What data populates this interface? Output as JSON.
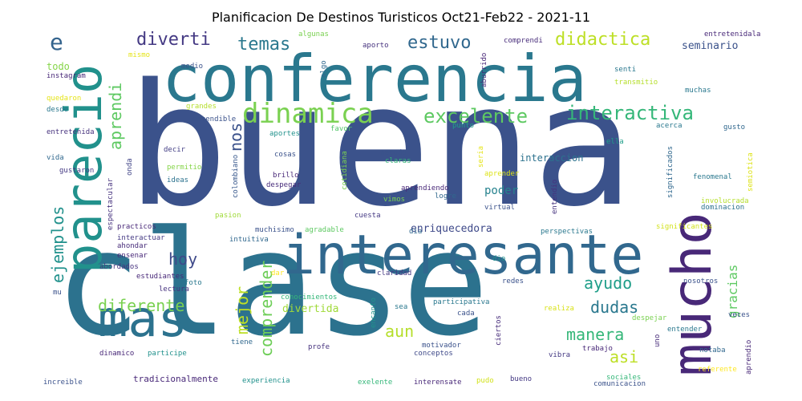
{
  "title": "Planificacion De Destinos Turisticos Oct21-Feb22 - 2021-11",
  "words": [
    {
      "text": "buena",
      "color": "#3b528b"
    },
    {
      "text": "clase",
      "color": "#2c728e"
    },
    {
      "text": "conferencia",
      "color": "#2a788e"
    },
    {
      "text": "interesante",
      "color": "#31688e"
    },
    {
      "text": "mucho",
      "color": "#482878"
    },
    {
      "text": "parecio",
      "color": "#21918c"
    },
    {
      "text": "mas",
      "color": "#2c728e"
    },
    {
      "text": "dinamica",
      "color": "#7ad151"
    },
    {
      "text": "excelente",
      "color": "#5ec962"
    },
    {
      "text": "interactiva",
      "color": "#35b779"
    },
    {
      "text": "e",
      "color": "#33638d"
    },
    {
      "text": "diverti",
      "color": "#443983"
    },
    {
      "text": "temas",
      "color": "#2a788e"
    },
    {
      "text": "estuvo",
      "color": "#31688e"
    },
    {
      "text": "didactica",
      "color": "#bddf26"
    },
    {
      "text": "seminario",
      "color": "#3b528b"
    },
    {
      "text": "aprendi",
      "color": "#5ec962"
    },
    {
      "text": "nos",
      "color": "#3b528b"
    },
    {
      "text": "hoy",
      "color": "#3e4989"
    },
    {
      "text": "ejemplos",
      "color": "#21918c"
    },
    {
      "text": "diferente",
      "color": "#7ad151"
    },
    {
      "text": "mejor",
      "color": "#bddf26"
    },
    {
      "text": "comprender",
      "color": "#6ece58"
    },
    {
      "text": "ayudo",
      "color": "#1f9e89"
    },
    {
      "text": "dudas",
      "color": "#2a788e"
    },
    {
      "text": "manera",
      "color": "#35b779"
    },
    {
      "text": "asi",
      "color": "#bddf26"
    },
    {
      "text": "aun",
      "color": "#b5de2b"
    },
    {
      "text": "gracias",
      "color": "#5ec962"
    },
    {
      "text": "enriquecedora",
      "color": "#3e4989"
    },
    {
      "text": "divertida",
      "color": "#a0da39"
    },
    {
      "text": "interaccion",
      "color": "#2c728e"
    },
    {
      "text": "poder",
      "color": "#26828e"
    },
    {
      "text": "todo",
      "color": "#86d549"
    },
    {
      "text": "instagram",
      "color": "#482878"
    },
    {
      "text": "quedaron",
      "color": "#e5e419"
    },
    {
      "text": "desde",
      "color": "#2a788e"
    },
    {
      "text": "entretenida",
      "color": "#46327e"
    },
    {
      "text": "vida",
      "color": "#31688e"
    },
    {
      "text": "gustaron",
      "color": "#443983"
    },
    {
      "text": "entretenidala",
      "color": "#482878"
    },
    {
      "text": "algunas",
      "color": "#7ad151"
    },
    {
      "text": "mismo",
      "color": "#e5e419"
    },
    {
      "text": "aporto",
      "color": "#46327e"
    },
    {
      "text": "comprendi",
      "color": "#472c7a"
    },
    {
      "text": "medio",
      "color": "#3b528b"
    },
    {
      "text": "algo",
      "color": "#31688e"
    },
    {
      "text": "aburrido",
      "color": "#482878"
    },
    {
      "text": "senti",
      "color": "#2a788e"
    },
    {
      "text": "muchas",
      "color": "#2a788e"
    },
    {
      "text": "transmitio",
      "color": "#b5de2b"
    },
    {
      "text": "grandes",
      "color": "#b5de2b"
    },
    {
      "text": "entendible",
      "color": "#3b528b"
    },
    {
      "text": "favor",
      "color": "#52c569"
    },
    {
      "text": "punto",
      "color": "#1f9e89"
    },
    {
      "text": "acerca",
      "color": "#2a788e"
    },
    {
      "text": "gusto",
      "color": "#31688e"
    },
    {
      "text": "aportes",
      "color": "#21918c"
    },
    {
      "text": "ella",
      "color": "#1f9e89"
    },
    {
      "text": "decir",
      "color": "#433e85"
    },
    {
      "text": "cosas",
      "color": "#3b528b"
    },
    {
      "text": "metodo",
      "color": "#3b528b"
    },
    {
      "text": "claras",
      "color": "#35b779"
    },
    {
      "text": "significados",
      "color": "#31688e"
    },
    {
      "text": "semiotica",
      "color": "#dde318"
    },
    {
      "text": "onda",
      "color": "#414487"
    },
    {
      "text": "colombiano",
      "color": "#38588c"
    },
    {
      "text": "cotidiana",
      "color": "#7ad151"
    },
    {
      "text": "seria",
      "color": "#e5e419"
    },
    {
      "text": "permitio",
      "color": "#86d549"
    },
    {
      "text": "brillo",
      "color": "#482878"
    },
    {
      "text": "aprender",
      "color": "#dde318"
    },
    {
      "text": "fenomenal",
      "color": "#2a788e"
    },
    {
      "text": "ideas",
      "color": "#2c728e"
    },
    {
      "text": "despegar",
      "color": "#472c7a"
    },
    {
      "text": "entendio",
      "color": "#46327e"
    },
    {
      "text": "aprendiendo",
      "color": "#482878"
    },
    {
      "text": "logre",
      "color": "#31688e"
    },
    {
      "text": "involucrada",
      "color": "#b5de2b"
    },
    {
      "text": "espectacular",
      "color": "#46327e"
    },
    {
      "text": "dominacion",
      "color": "#2c728e"
    },
    {
      "text": "vimos",
      "color": "#7ad151"
    },
    {
      "text": "virtual",
      "color": "#3b528b"
    },
    {
      "text": "pasion",
      "color": "#a0da39"
    },
    {
      "text": "cuesta",
      "color": "#443983"
    },
    {
      "text": "practicos",
      "color": "#482878"
    },
    {
      "text": "muchisimo",
      "color": "#3b528b"
    },
    {
      "text": "agradable",
      "color": "#5ec962"
    },
    {
      "text": "dia",
      "color": "#31688e"
    },
    {
      "text": "perspectivas",
      "color": "#2a788e"
    },
    {
      "text": "significantes",
      "color": "#d2e21b"
    },
    {
      "text": "interactuar",
      "color": "#443983"
    },
    {
      "text": "intuitiva",
      "color": "#31688e"
    },
    {
      "text": "ahondar",
      "color": "#472c7a"
    },
    {
      "text": "ensenar",
      "color": "#482878"
    },
    {
      "text": "abordados",
      "color": "#46327e"
    },
    {
      "text": "dio",
      "color": "#21918c"
    },
    {
      "text": "estudiantes",
      "color": "#482878"
    },
    {
      "text": "lectura",
      "color": "#46327e"
    },
    {
      "text": "foto",
      "color": "#2a788e"
    },
    {
      "text": "dar",
      "color": "#fde725"
    },
    {
      "text": "claridad",
      "color": "#443983"
    },
    {
      "text": "redes",
      "color": "#3b528b"
    },
    {
      "text": "nosotros",
      "color": "#3b528b"
    },
    {
      "text": "mu",
      "color": "#3b528b"
    },
    {
      "text": "conocimientos",
      "color": "#35b779"
    },
    {
      "text": "encanto",
      "color": "#21918c"
    },
    {
      "text": "participativa",
      "color": "#2a788e"
    },
    {
      "text": "realiza",
      "color": "#d8e219"
    },
    {
      "text": "sea",
      "color": "#2a788e"
    },
    {
      "text": "cada",
      "color": "#3b528b"
    },
    {
      "text": "despejar",
      "color": "#7ad151"
    },
    {
      "text": "veces",
      "color": "#3b528b"
    },
    {
      "text": "ciertos",
      "color": "#472c7a"
    },
    {
      "text": "entender",
      "color": "#2a788e"
    },
    {
      "text": "tiene",
      "color": "#31688e"
    },
    {
      "text": "profe",
      "color": "#46327e"
    },
    {
      "text": "motivador",
      "color": "#3b528b"
    },
    {
      "text": "conceptos",
      "color": "#3e4989"
    },
    {
      "text": "uno",
      "color": "#472c7a"
    },
    {
      "text": "trabajo",
      "color": "#482878"
    },
    {
      "text": "vibra",
      "color": "#443983"
    },
    {
      "text": "notaba",
      "color": "#31688e"
    },
    {
      "text": "aprendio",
      "color": "#482878"
    },
    {
      "text": "dinamico",
      "color": "#482878"
    },
    {
      "text": "participe",
      "color": "#21918c"
    },
    {
      "text": "referente",
      "color": "#fde725"
    },
    {
      "text": "increible",
      "color": "#3b528b"
    },
    {
      "text": "tradicionalmente",
      "color": "#482878"
    },
    {
      "text": "experiencia",
      "color": "#21918c"
    },
    {
      "text": "exelente",
      "color": "#35b779"
    },
    {
      "text": "interensate",
      "color": "#482878"
    },
    {
      "text": "pudo",
      "color": "#d2e21b"
    },
    {
      "text": "bueno",
      "color": "#443983"
    },
    {
      "text": "sociales",
      "color": "#35b779"
    },
    {
      "text": "comunicacion",
      "color": "#3b528b"
    }
  ]
}
